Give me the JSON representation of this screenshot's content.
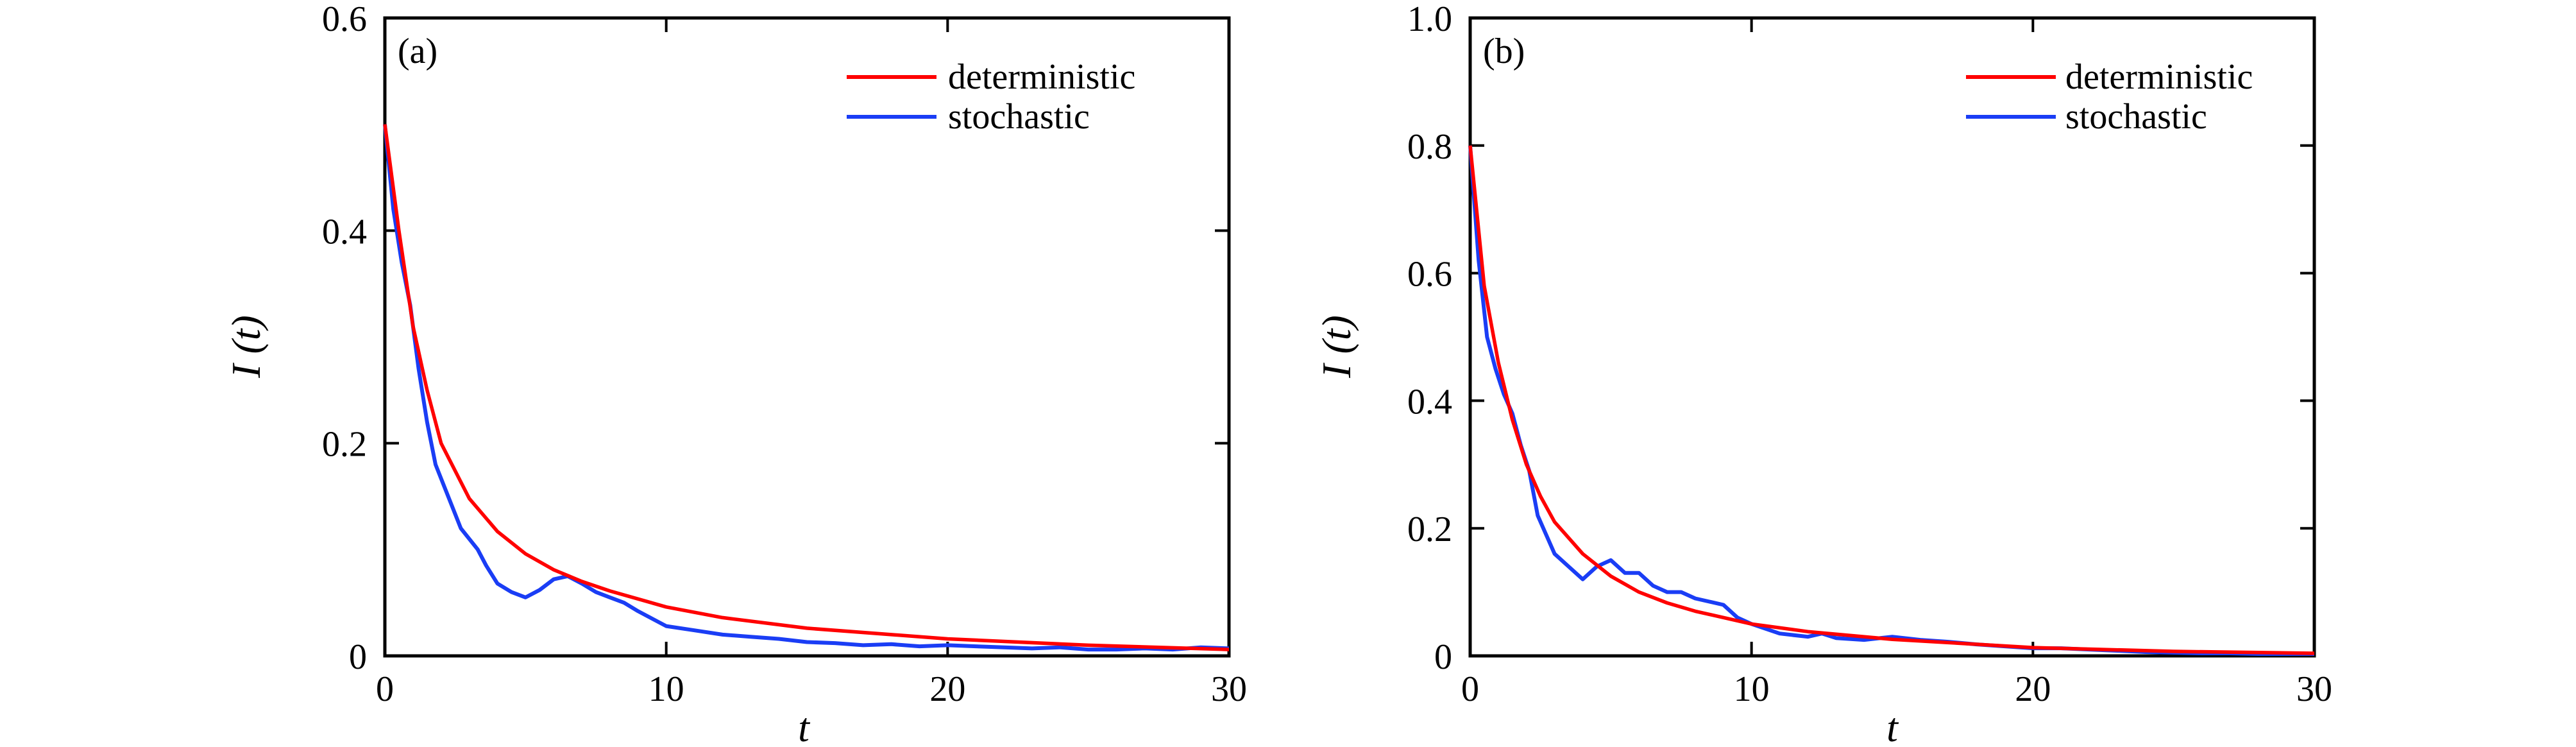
{
  "chart_data": [
    {
      "type": "line",
      "panel_label": "(a)",
      "xlabel": "t",
      "ylabel": "I (t)",
      "xlim": [
        0,
        30
      ],
      "ylim": [
        0,
        0.6
      ],
      "xticks": [
        0,
        10,
        20,
        30
      ],
      "yticks": [
        0,
        0.2,
        0.4,
        0.6
      ],
      "xtick_labels": [
        "0",
        "10",
        "20",
        "30"
      ],
      "ytick_labels": [
        "0",
        "0.2",
        "0.4",
        "0.6"
      ],
      "grid": false,
      "legend_position": "top-right",
      "series": [
        {
          "name": "deterministic",
          "color": "#ff0000",
          "x": [
            0,
            0.5,
            1,
            1.5,
            2,
            3,
            4,
            5,
            6,
            7,
            8,
            10,
            12,
            15,
            20,
            25,
            30
          ],
          "y": [
            0.5,
            0.4,
            0.31,
            0.25,
            0.2,
            0.148,
            0.117,
            0.096,
            0.081,
            0.07,
            0.061,
            0.046,
            0.036,
            0.026,
            0.016,
            0.01,
            0.006
          ]
        },
        {
          "name": "stochastic",
          "color": "#1a3df5",
          "x": [
            0,
            0.3,
            0.6,
            0.9,
            1.2,
            1.5,
            1.8,
            2.1,
            2.4,
            2.7,
            3.0,
            3.3,
            3.6,
            4.0,
            4.5,
            5.0,
            5.5,
            6.0,
            6.5,
            7.0,
            7.5,
            8.0,
            8.5,
            9.0,
            9.5,
            10.0,
            11.0,
            12.0,
            13.0,
            14.0,
            15.0,
            16.0,
            17.0,
            18.0,
            19.0,
            20.0,
            21.0,
            22.0,
            23.0,
            24.0,
            25.0,
            26.0,
            27.0,
            28.0,
            29.0,
            30.0
          ],
          "y": [
            0.5,
            0.42,
            0.37,
            0.33,
            0.27,
            0.22,
            0.18,
            0.16,
            0.14,
            0.12,
            0.11,
            0.1,
            0.085,
            0.068,
            0.06,
            0.055,
            0.062,
            0.072,
            0.075,
            0.068,
            0.06,
            0.055,
            0.05,
            0.042,
            0.035,
            0.028,
            0.024,
            0.02,
            0.018,
            0.016,
            0.013,
            0.012,
            0.01,
            0.011,
            0.009,
            0.01,
            0.009,
            0.008,
            0.007,
            0.008,
            0.006,
            0.006,
            0.007,
            0.006,
            0.008,
            0.007
          ]
        }
      ]
    },
    {
      "type": "line",
      "panel_label": "(b)",
      "xlabel": "t",
      "ylabel": "I (t)",
      "xlim": [
        0,
        30
      ],
      "ylim": [
        0,
        1.0
      ],
      "xticks": [
        0,
        10,
        20,
        30
      ],
      "yticks": [
        0,
        0.2,
        0.4,
        0.6,
        0.8,
        1.0
      ],
      "xtick_labels": [
        "0",
        "10",
        "20",
        "30"
      ],
      "ytick_labels": [
        "0",
        "0.2",
        "0.4",
        "0.6",
        "0.8",
        "1.0"
      ],
      "grid": false,
      "legend_position": "top-right",
      "series": [
        {
          "name": "deterministic",
          "color": "#ff0000",
          "x": [
            0,
            0.5,
            1,
            1.5,
            2,
            2.5,
            3,
            4,
            5,
            6,
            7,
            8,
            10,
            12,
            15,
            20,
            25,
            30
          ],
          "y": [
            0.8,
            0.58,
            0.46,
            0.37,
            0.3,
            0.25,
            0.21,
            0.16,
            0.125,
            0.1,
            0.083,
            0.07,
            0.05,
            0.038,
            0.026,
            0.013,
            0.007,
            0.004
          ]
        },
        {
          "name": "stochastic",
          "color": "#1a3df5",
          "x": [
            0,
            0.3,
            0.6,
            0.9,
            1.2,
            1.5,
            1.8,
            2.1,
            2.4,
            2.7,
            3.0,
            3.5,
            4.0,
            4.5,
            5.0,
            5.5,
            6.0,
            6.5,
            7.0,
            7.5,
            8.0,
            8.5,
            9.0,
            9.5,
            10.0,
            11.0,
            12.0,
            12.5,
            13.0,
            14.0,
            15.0,
            16.0,
            17.0,
            18.0,
            19.0,
            20.0,
            21.0,
            22.0,
            23.0,
            24.0,
            25.0,
            26.0,
            27.0,
            28.0,
            29.0,
            30.0
          ],
          "y": [
            0.8,
            0.62,
            0.5,
            0.45,
            0.41,
            0.38,
            0.33,
            0.29,
            0.22,
            0.19,
            0.16,
            0.14,
            0.12,
            0.14,
            0.15,
            0.13,
            0.13,
            0.11,
            0.1,
            0.1,
            0.09,
            0.085,
            0.08,
            0.06,
            0.05,
            0.035,
            0.03,
            0.035,
            0.028,
            0.025,
            0.03,
            0.025,
            0.022,
            0.018,
            0.015,
            0.012,
            0.012,
            0.01,
            0.008,
            0.006,
            0.005,
            0.004,
            0.004,
            0.003,
            0.003,
            0.003
          ]
        }
      ]
    }
  ]
}
